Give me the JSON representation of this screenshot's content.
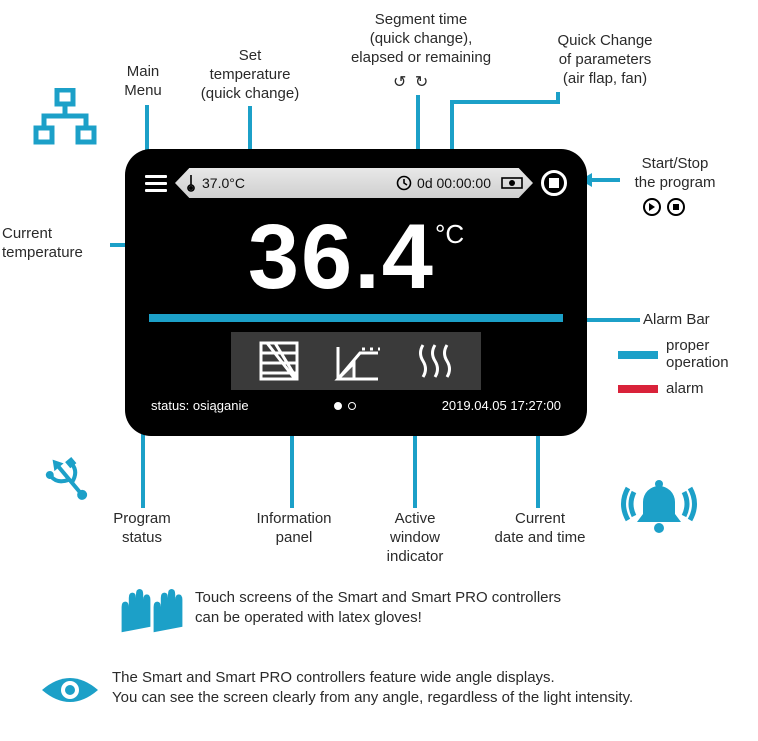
{
  "colors": {
    "accent": "#1ca0c8",
    "alarm": "#d9223a",
    "device_bg": "#000000",
    "panel_bg": "#3a3a3a",
    "text": "#2a2a2a",
    "white": "#ffffff"
  },
  "callouts": {
    "main_menu": "Main\nMenu",
    "set_temp": "Set\ntemperature\n(quick change)",
    "segment_time": "Segment time\n(quick change),\nelapsed or remaining",
    "quick_change": "Quick Change\nof parameters\n(air flap, fan)",
    "start_stop": "Start/Stop\nthe program",
    "current_temp": "Current\ntemperature",
    "alarm_bar": "Alarm Bar",
    "program_status": "Program\nstatus",
    "info_panel": "Information\npanel",
    "active_window": "Active\nwindow\nindicator",
    "date_time": "Current\ndate and time",
    "legend_proper": "proper\noperation",
    "legend_alarm": "alarm"
  },
  "reload_glyphs": "↺ ↻",
  "device": {
    "set_temp": "37.0°C",
    "segment_time": "0d 00:00:00",
    "temp_value": "36.4",
    "temp_unit": "°C",
    "status_text": "status: osiąganie",
    "datetime": "2019.04.05  17:27:00"
  },
  "notes": {
    "gloves": "Touch screens of the Smart and Smart PRO controllers\ncan be operated with latex gloves!",
    "eye": "The Smart  and Smart PRO controllers feature wide angle displays.\nYou can see the screen clearly from any angle, regardless of the light intensity."
  }
}
